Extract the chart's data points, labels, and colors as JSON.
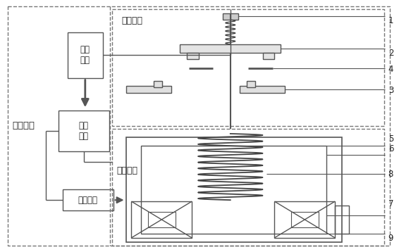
{
  "bg_color": "#ffffff",
  "lc": "#555555",
  "dc": "#777777",
  "tc": "#222222",
  "labels": {
    "control_module": "控制模块",
    "touch_mechanism": "触头机构",
    "detect_current": "检测\n电流",
    "control_unit": "控制\n单元",
    "current_pulse": "电流脉冲",
    "em_mechanism": "电磁机构"
  },
  "numbers": [
    [
      "1",
      552,
      28
    ],
    [
      "2",
      552,
      75
    ],
    [
      "3",
      552,
      128
    ],
    [
      "4",
      552,
      98
    ],
    [
      "5",
      552,
      198
    ],
    [
      "6",
      552,
      212
    ],
    [
      "7",
      552,
      290
    ],
    [
      "8",
      552,
      248
    ],
    [
      "9",
      552,
      340
    ]
  ],
  "fig_w": 5.66,
  "fig_h": 3.58
}
